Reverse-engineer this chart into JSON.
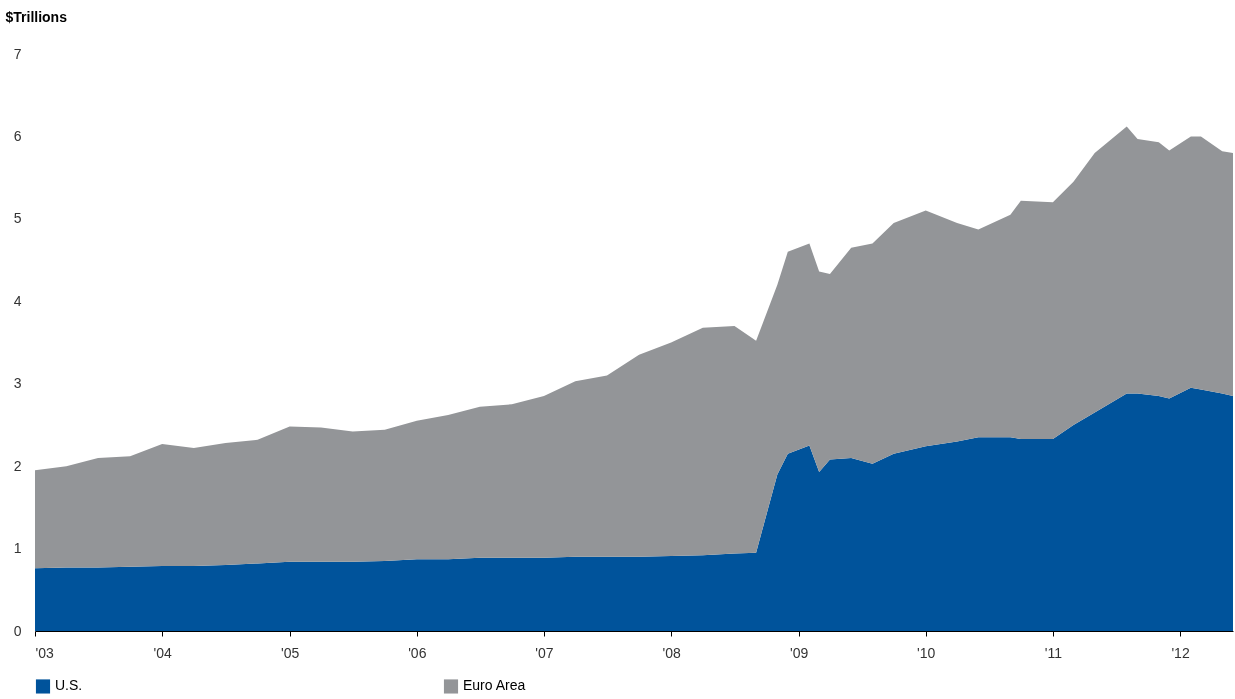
{
  "chart_data": {
    "type": "area",
    "stacked": true,
    "ylabel": "$Trillions",
    "x": [
      "2003-01",
      "2003-04",
      "2003-07",
      "2003-10",
      "2004-01",
      "2004-04",
      "2004-07",
      "2004-10",
      "2005-01",
      "2005-04",
      "2005-07",
      "2005-10",
      "2006-01",
      "2006-04",
      "2006-07",
      "2006-10",
      "2007-01",
      "2007-04",
      "2007-07",
      "2007-10",
      "2008-01",
      "2008-04",
      "2008-07",
      "2008-09",
      "2008-11",
      "2008-12",
      "2009-02",
      "2009-03",
      "2009-04",
      "2009-06",
      "2009-08",
      "2009-10",
      "2010-01",
      "2010-04",
      "2010-06",
      "2010-09",
      "2010-10",
      "2011-01",
      "2011-03",
      "2011-05",
      "2011-08",
      "2011-09",
      "2011-11",
      "2011-12",
      "2012-02",
      "2012-03",
      "2012-05",
      "2012-06"
    ],
    "series": [
      {
        "name": "U.S.",
        "color": "#00539b",
        "values": [
          0.76,
          0.77,
          0.77,
          0.78,
          0.79,
          0.79,
          0.8,
          0.82,
          0.84,
          0.84,
          0.84,
          0.85,
          0.87,
          0.87,
          0.89,
          0.89,
          0.89,
          0.9,
          0.9,
          0.9,
          0.91,
          0.92,
          0.94,
          0.95,
          1.9,
          2.15,
          2.25,
          1.93,
          2.08,
          2.1,
          2.03,
          2.15,
          2.24,
          2.3,
          2.35,
          2.35,
          2.33,
          2.33,
          2.5,
          2.65,
          2.88,
          2.88,
          2.85,
          2.82,
          2.95,
          2.93,
          2.88,
          2.85
        ]
      },
      {
        "name": "Euro Area",
        "color": "#939598",
        "values": [
          1.19,
          1.23,
          1.33,
          1.34,
          1.48,
          1.43,
          1.48,
          1.5,
          1.64,
          1.63,
          1.58,
          1.59,
          1.68,
          1.75,
          1.83,
          1.86,
          1.96,
          2.13,
          2.2,
          2.45,
          2.59,
          2.76,
          2.76,
          2.57,
          2.3,
          2.45,
          2.45,
          2.43,
          2.25,
          2.55,
          2.67,
          2.8,
          2.86,
          2.65,
          2.52,
          2.7,
          2.89,
          2.87,
          2.95,
          3.15,
          3.24,
          3.09,
          3.08,
          3.01,
          3.05,
          3.07,
          2.94,
          2.95
        ]
      }
    ],
    "xlim": [
      "2003-01",
      "2012-06"
    ],
    "xticks": [
      {
        "value": "2003-01",
        "label": "'03"
      },
      {
        "value": "2004-01",
        "label": "'04"
      },
      {
        "value": "2005-01",
        "label": "'05"
      },
      {
        "value": "2006-01",
        "label": "'06"
      },
      {
        "value": "2007-01",
        "label": "'07"
      },
      {
        "value": "2008-01",
        "label": "'08"
      },
      {
        "value": "2009-01",
        "label": "'09"
      },
      {
        "value": "2010-01",
        "label": "'10"
      },
      {
        "value": "2011-01",
        "label": "'11"
      },
      {
        "value": "2012-01",
        "label": "'12"
      }
    ],
    "ylim": [
      0,
      7
    ],
    "yticks": [
      0,
      1,
      2,
      3,
      4,
      5,
      6,
      7
    ],
    "grid": false,
    "legend": "bottom"
  }
}
